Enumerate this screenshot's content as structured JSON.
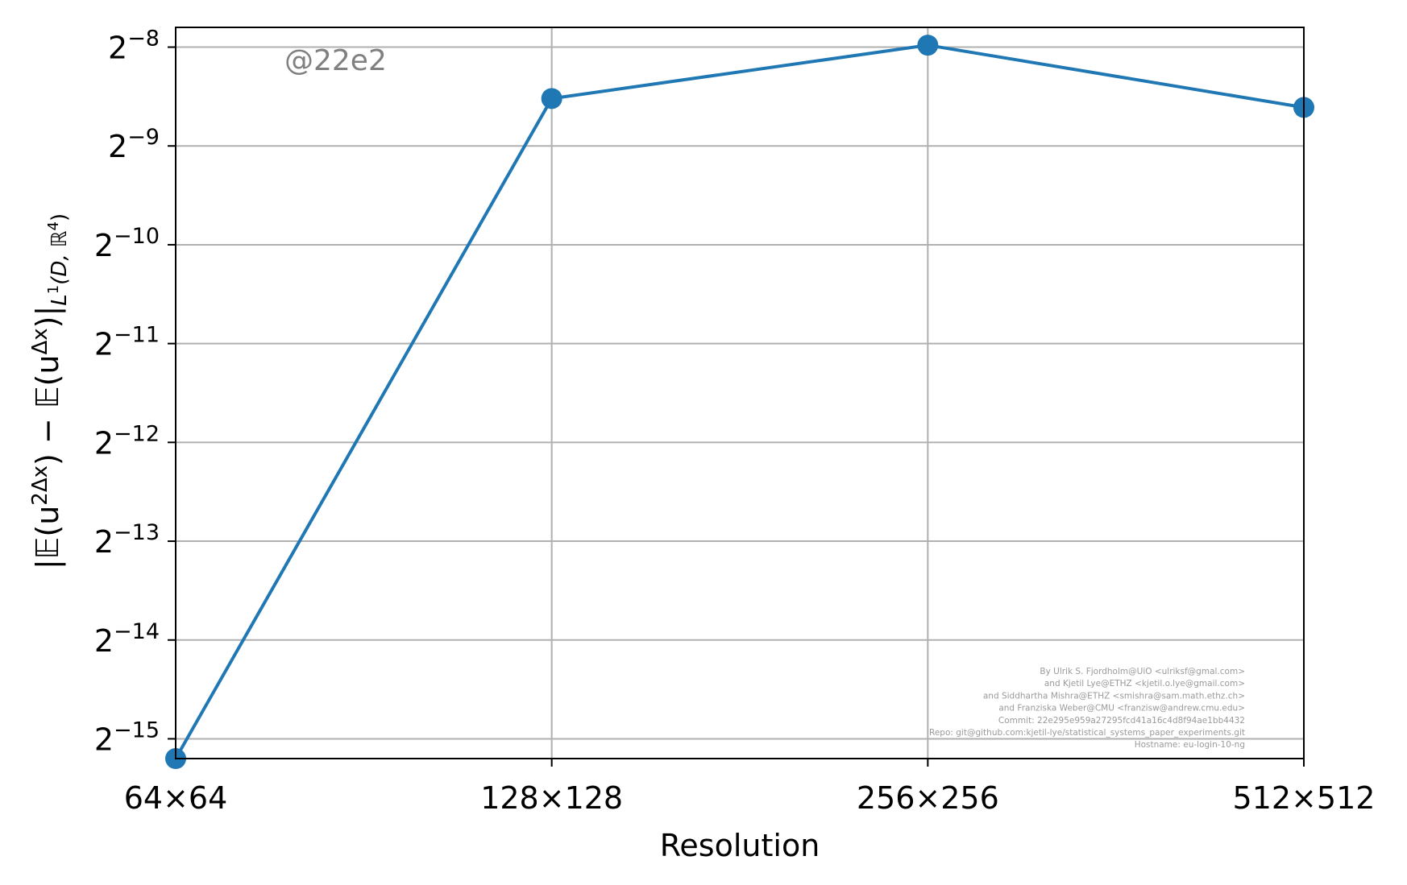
{
  "chart_data": {
    "type": "line",
    "x": [
      "64×64",
      "128×128",
      "256×256",
      "512×512"
    ],
    "series": [
      {
        "values": [
          -15.2,
          -8.52,
          -7.98,
          -8.61
        ],
        "color": "#1f77b4"
      }
    ],
    "xlabel": "Resolution",
    "ylabel": "|𝔼(u^{2Δx}) − 𝔼(u^{Δx})|_{L¹(D,ℝ⁴)}",
    "ylabel_parts": {
      "open": "|𝔼(u",
      "sup1": "2Δx",
      "mid": ") − 𝔼(u",
      "sup2": "Δx",
      "close": ")|",
      "sub_a": "L",
      "sub_sup": "1",
      "sub_b": "(D, ℝ",
      "sub_sup2": "4",
      "sub_c": ")"
    },
    "yscale": "log2",
    "ylim": [
      -15.2,
      -7.8
    ],
    "y_tick_exponents": [
      -8,
      -9,
      -10,
      -11,
      -12,
      -13,
      -14,
      -15
    ],
    "y_tick_base": "2",
    "grid": true,
    "tag": "@22e2",
    "credits": [
      "By Ulrik S. Fjordholm@UiO <ulriksf@gmal.com>",
      "and Kjetil Lye@ETHZ <kjetil.o.lye@gmail.com>",
      "and Siddhartha Mishra@ETHZ <smishra@sam.math.ethz.ch>",
      "and Franziska Weber@CMU <franzisw@andrew.cmu.edu>",
      "Commit: 22e295e959a27295fcd41a16c4d8f94ae1bb4432",
      "Repo: git@github.com:kjetil-lye/statistical_systems_paper_experiments.git",
      "Hostname: eu-login-10-ng"
    ]
  }
}
